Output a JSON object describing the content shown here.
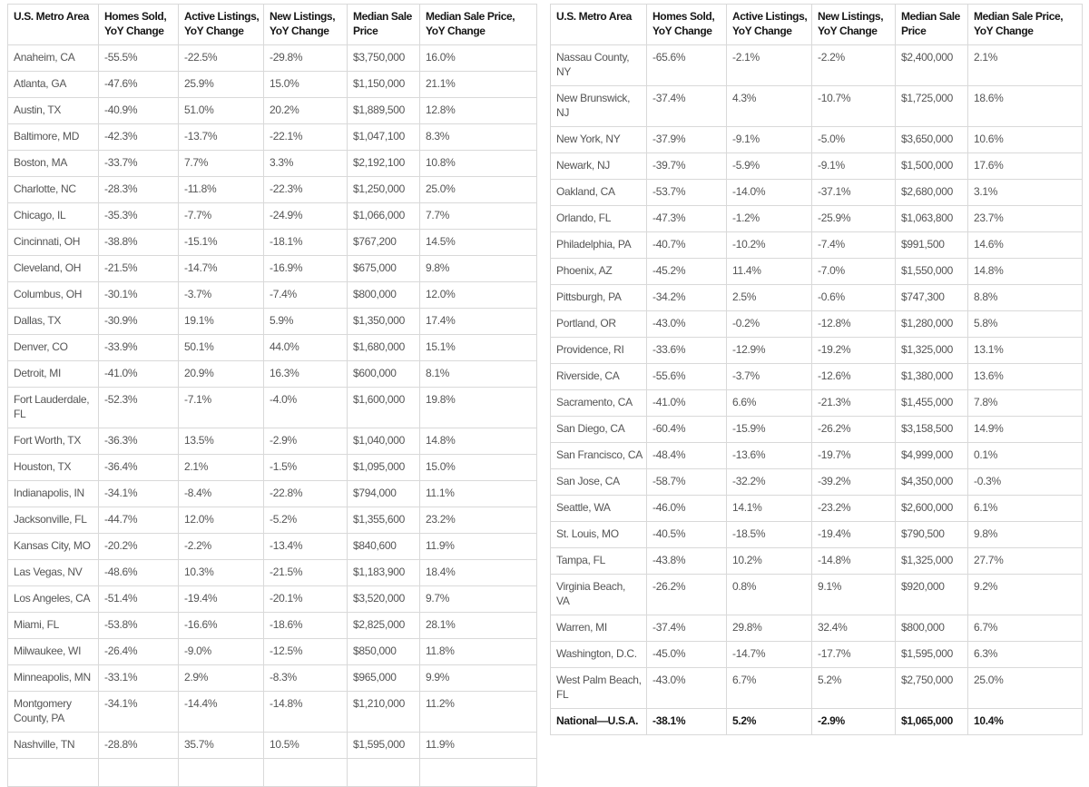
{
  "styles": {
    "border_color": "#d9d9d9",
    "header_text_color": "#161616",
    "body_text_color": "#555555",
    "background_color": "#ffffff"
  },
  "columns": [
    "U.S. Metro Area",
    "Homes Sold,\nYoY Change",
    "Active Listings,\nYoY Change",
    "New Listings,\nYoY Change",
    "Median Sale\nPrice",
    "Median Sale Price,\nYoY Change"
  ],
  "chart_data": [
    {
      "type": "table",
      "position": "left",
      "columns": [
        "U.S. Metro Area",
        "Homes Sold, YoY Change",
        "Active Listings, YoY Change",
        "New Listings, YoY Change",
        "Median Sale Price",
        "Median Sale Price, YoY Change"
      ],
      "rows": [
        [
          "Anaheim, CA",
          "-55.5%",
          "-22.5%",
          "-29.8%",
          "$3,750,000",
          "16.0%"
        ],
        [
          "Atlanta, GA",
          "-47.6%",
          "25.9%",
          "15.0%",
          "$1,150,000",
          "21.1%"
        ],
        [
          "Austin, TX",
          "-40.9%",
          "51.0%",
          "20.2%",
          "$1,889,500",
          "12.8%"
        ],
        [
          "Baltimore, MD",
          "-42.3%",
          "-13.7%",
          "-22.1%",
          "$1,047,100",
          "8.3%"
        ],
        [
          "Boston, MA",
          "-33.7%",
          "7.7%",
          "3.3%",
          "$2,192,100",
          "10.8%"
        ],
        [
          "Charlotte, NC",
          "-28.3%",
          "-11.8%",
          "-22.3%",
          "$1,250,000",
          "25.0%"
        ],
        [
          "Chicago, IL",
          "-35.3%",
          "-7.7%",
          "-24.9%",
          "$1,066,000",
          "7.7%"
        ],
        [
          "Cincinnati, OH",
          "-38.8%",
          "-15.1%",
          "-18.1%",
          "$767,200",
          "14.5%"
        ],
        [
          "Cleveland, OH",
          "-21.5%",
          "-14.7%",
          "-16.9%",
          "$675,000",
          "9.8%"
        ],
        [
          "Columbus, OH",
          "-30.1%",
          "-3.7%",
          "-7.4%",
          "$800,000",
          "12.0%"
        ],
        [
          "Dallas, TX",
          "-30.9%",
          "19.1%",
          "5.9%",
          "$1,350,000",
          "17.4%"
        ],
        [
          "Denver, CO",
          "-33.9%",
          "50.1%",
          "44.0%",
          "$1,680,000",
          "15.1%"
        ],
        [
          "Detroit, MI",
          "-41.0%",
          "20.9%",
          "16.3%",
          "$600,000",
          "8.1%"
        ],
        [
          "Fort Lauderdale,\nFL",
          "-52.3%",
          "-7.1%",
          "-4.0%",
          "$1,600,000",
          "19.8%"
        ],
        [
          "Fort Worth, TX",
          "-36.3%",
          "13.5%",
          "-2.9%",
          "$1,040,000",
          "14.8%"
        ],
        [
          "Houston, TX",
          "-36.4%",
          "2.1%",
          "-1.5%",
          "$1,095,000",
          "15.0%"
        ],
        [
          "Indianapolis, IN",
          "-34.1%",
          "-8.4%",
          "-22.8%",
          "$794,000",
          "11.1%"
        ],
        [
          "Jacksonville, FL",
          "-44.7%",
          "12.0%",
          "-5.2%",
          "$1,355,600",
          "23.2%"
        ],
        [
          "Kansas City, MO",
          "-20.2%",
          "-2.2%",
          "-13.4%",
          "$840,600",
          "11.9%"
        ],
        [
          "Las Vegas, NV",
          "-48.6%",
          "10.3%",
          "-21.5%",
          "$1,183,900",
          "18.4%"
        ],
        [
          "Los Angeles, CA",
          "-51.4%",
          "-19.4%",
          "-20.1%",
          "$3,520,000",
          "9.7%"
        ],
        [
          "Miami, FL",
          "-53.8%",
          "-16.6%",
          "-18.6%",
          "$2,825,000",
          "28.1%"
        ],
        [
          "Milwaukee, WI",
          "-26.4%",
          "-9.0%",
          "-12.5%",
          "$850,000",
          "11.8%"
        ],
        [
          "Minneapolis, MN",
          "-33.1%",
          "2.9%",
          "-8.3%",
          "$965,000",
          "9.9%"
        ],
        [
          "Montgomery\nCounty, PA",
          "-34.1%",
          "-14.4%",
          "-14.8%",
          "$1,210,000",
          "11.2%"
        ],
        [
          "Nashville, TN",
          "-28.8%",
          "35.7%",
          "10.5%",
          "$1,595,000",
          "11.9%"
        ]
      ],
      "bold_row_indices": [],
      "partial_next_row": true
    },
    {
      "type": "table",
      "position": "right",
      "columns": [
        "U.S. Metro Area",
        "Homes Sold, YoY Change",
        "Active Listings, YoY Change",
        "New Listings, YoY Change",
        "Median Sale Price",
        "Median Sale Price, YoY Change"
      ],
      "rows": [
        [
          "Nassau County,\nNY",
          "-65.6%",
          "-2.1%",
          "-2.2%",
          "$2,400,000",
          "2.1%"
        ],
        [
          "New Brunswick,\nNJ",
          "-37.4%",
          "4.3%",
          "-10.7%",
          "$1,725,000",
          "18.6%"
        ],
        [
          "New York, NY",
          "-37.9%",
          "-9.1%",
          "-5.0%",
          "$3,650,000",
          "10.6%"
        ],
        [
          "Newark, NJ",
          "-39.7%",
          "-5.9%",
          "-9.1%",
          "$1,500,000",
          "17.6%"
        ],
        [
          "Oakland, CA",
          "-53.7%",
          "-14.0%",
          "-37.1%",
          "$2,680,000",
          "3.1%"
        ],
        [
          "Orlando, FL",
          "-47.3%",
          "-1.2%",
          "-25.9%",
          "$1,063,800",
          "23.7%"
        ],
        [
          "Philadelphia, PA",
          "-40.7%",
          "-10.2%",
          "-7.4%",
          "$991,500",
          "14.6%"
        ],
        [
          "Phoenix, AZ",
          "-45.2%",
          "11.4%",
          "-7.0%",
          "$1,550,000",
          "14.8%"
        ],
        [
          "Pittsburgh, PA",
          "-34.2%",
          "2.5%",
          "-0.6%",
          "$747,300",
          "8.8%"
        ],
        [
          "Portland, OR",
          "-43.0%",
          "-0.2%",
          "-12.8%",
          "$1,280,000",
          "5.8%"
        ],
        [
          "Providence, RI",
          "-33.6%",
          "-12.9%",
          "-19.2%",
          "$1,325,000",
          "13.1%"
        ],
        [
          "Riverside, CA",
          "-55.6%",
          "-3.7%",
          "-12.6%",
          "$1,380,000",
          "13.6%"
        ],
        [
          "Sacramento, CA",
          "-41.0%",
          "6.6%",
          "-21.3%",
          "$1,455,000",
          "7.8%"
        ],
        [
          "San Diego, CA",
          "-60.4%",
          "-15.9%",
          "-26.2%",
          "$3,158,500",
          "14.9%"
        ],
        [
          "San Francisco, CA",
          "-48.4%",
          "-13.6%",
          "-19.7%",
          "$4,999,000",
          "0.1%"
        ],
        [
          "San Jose, CA",
          "-58.7%",
          "-32.2%",
          "-39.2%",
          "$4,350,000",
          "-0.3%"
        ],
        [
          "Seattle, WA",
          "-46.0%",
          "14.1%",
          "-23.2%",
          "$2,600,000",
          "6.1%"
        ],
        [
          "St. Louis, MO",
          "-40.5%",
          "-18.5%",
          "-19.4%",
          "$790,500",
          "9.8%"
        ],
        [
          "Tampa, FL",
          "-43.8%",
          "10.2%",
          "-14.8%",
          "$1,325,000",
          "27.7%"
        ],
        [
          "Virginia Beach,\nVA",
          "-26.2%",
          "0.8%",
          "9.1%",
          "$920,000",
          "9.2%"
        ],
        [
          "Warren, MI",
          "-37.4%",
          "29.8%",
          "32.4%",
          "$800,000",
          "6.7%"
        ],
        [
          "Washington, D.C.",
          "-45.0%",
          "-14.7%",
          "-17.7%",
          "$1,595,000",
          "6.3%"
        ],
        [
          "West Palm Beach,\nFL",
          "-43.0%",
          "6.7%",
          "5.2%",
          "$2,750,000",
          "25.0%"
        ],
        [
          "National—U.S.A.",
          "-38.1%",
          "5.2%",
          "-2.9%",
          "$1,065,000",
          "10.4%"
        ]
      ],
      "bold_row_indices": [
        23
      ],
      "partial_next_row": false
    }
  ]
}
